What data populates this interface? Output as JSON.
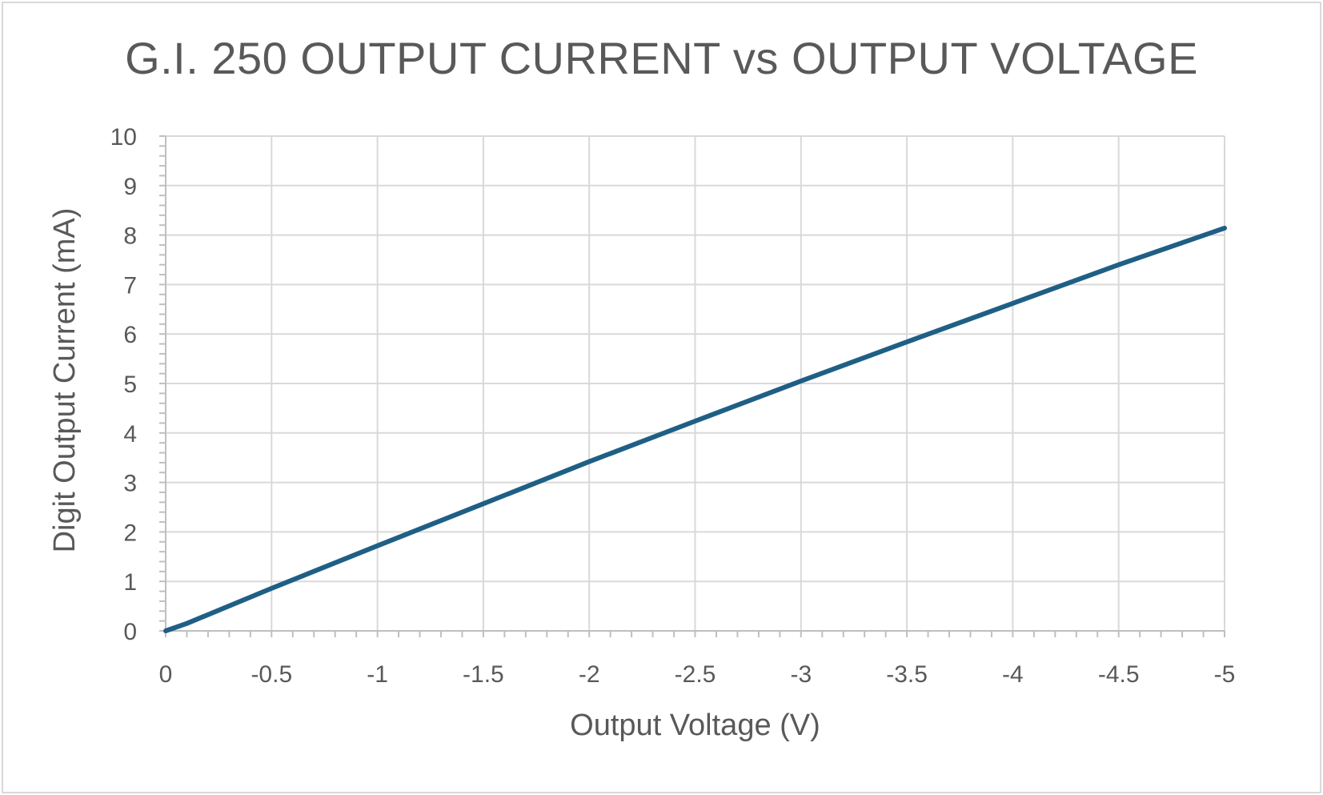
{
  "chart_data": {
    "type": "line",
    "title": "G.I. 250 OUTPUT CURRENT vs OUTPUT VOLTAGE",
    "xlabel": "Output Voltage (V)",
    "ylabel": "Digit Output Current (mA)",
    "xlim": [
      0,
      -5
    ],
    "ylim": [
      0,
      10
    ],
    "xticks": [
      0,
      -0.5,
      -1,
      -1.5,
      -2,
      -2.5,
      -3,
      -3.5,
      -4,
      -4.5,
      -5
    ],
    "xtick_labels": [
      "0",
      "-0.5",
      "-1",
      "-1.5",
      "-2",
      "-2.5",
      "-3",
      "-3.5",
      "-4",
      "-4.5",
      "-5"
    ],
    "yticks": [
      0,
      1,
      2,
      3,
      4,
      5,
      6,
      7,
      8,
      9,
      10
    ],
    "ytick_labels": [
      "0",
      "1",
      "2",
      "3",
      "4",
      "5",
      "6",
      "7",
      "8",
      "9",
      "10"
    ],
    "grid": true,
    "legend": false,
    "series_color": "#1f5f85",
    "series": [
      {
        "x": [
          0,
          -0.1,
          -0.5,
          -1,
          -1.5,
          -2,
          -2.5,
          -3,
          -3.5,
          -4,
          -4.5,
          -5
        ],
        "y": [
          0,
          0.15,
          0.86,
          1.72,
          2.57,
          3.42,
          4.24,
          5.05,
          5.84,
          6.62,
          7.4,
          8.14
        ]
      }
    ]
  }
}
